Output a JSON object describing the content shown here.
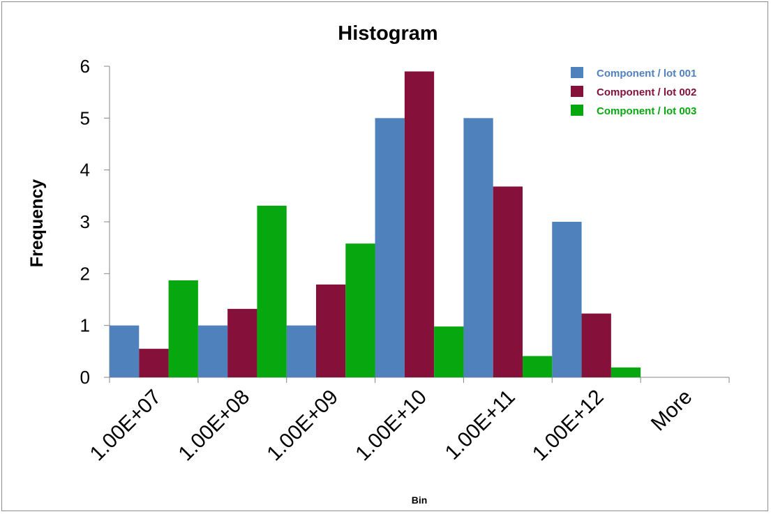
{
  "chart_data": {
    "type": "bar",
    "title": "Histogram",
    "xlabel": "Bin",
    "ylabel": "Frequency",
    "categories": [
      "1.00E+07",
      "1.00E+08",
      "1.00E+09",
      "1.00E+10",
      "1.00E+11",
      "1.00E+12",
      "More"
    ],
    "yticks": [
      "0",
      "1",
      "2",
      "3",
      "4",
      "5",
      "6"
    ],
    "ylim": [
      0,
      6
    ],
    "grid": false,
    "legend_position": "top-right",
    "series": [
      {
        "name": "Component / lot 001",
        "color": "#4F81BD",
        "values": [
          1,
          1,
          1,
          5,
          5,
          3,
          0
        ]
      },
      {
        "name": "Component / lot 002",
        "color": "#85103A",
        "values": [
          0.55,
          1.32,
          1.79,
          5.9,
          3.68,
          1.23,
          0
        ]
      },
      {
        "name": "Component / lot 003",
        "color": "#06A70F",
        "values": [
          1.87,
          3.31,
          2.58,
          0.98,
          0.41,
          0.19,
          0
        ]
      }
    ]
  }
}
